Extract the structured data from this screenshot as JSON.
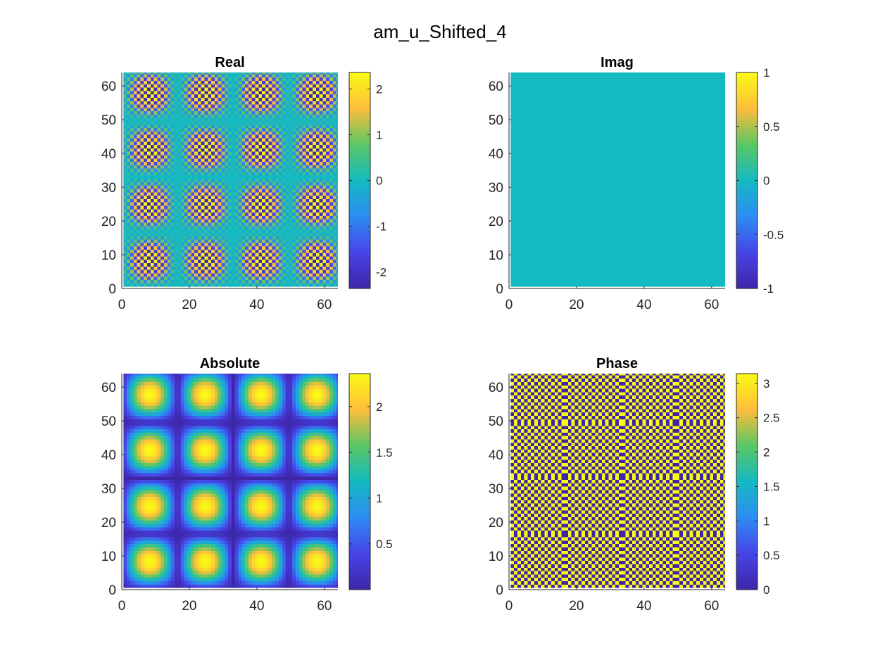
{
  "figure": {
    "title": "am_u_Shifted_4"
  },
  "colormap": [
    "#3e26a8",
    "#4744e8",
    "#2d8cf3",
    "#14bac1",
    "#5ac764",
    "#ffbd3b",
    "#f9fb15"
  ],
  "chart_data": [
    {
      "type": "heatmap",
      "title": "Real",
      "xlim": [
        0,
        64
      ],
      "ylim": [
        0,
        64
      ],
      "xticks": [
        "0",
        "20",
        "40",
        "60"
      ],
      "xtick_values": [
        0,
        20,
        40,
        60
      ],
      "yticks": [
        "0",
        "10",
        "20",
        "30",
        "40",
        "50",
        "60"
      ],
      "ytick_values": [
        0,
        10,
        20,
        30,
        40,
        50,
        60
      ],
      "clim": [
        -2.36,
        2.36
      ],
      "colorbar_ticks": [
        "-2",
        "-1",
        "0",
        "1",
        "2"
      ],
      "colorbar_tick_values": [
        -2,
        -1,
        0,
        1,
        2
      ],
      "grid_size": 64,
      "pattern": "real"
    },
    {
      "type": "heatmap",
      "title": "Imag",
      "xlim": [
        0,
        64
      ],
      "ylim": [
        0,
        64
      ],
      "xticks": [
        "0",
        "20",
        "40",
        "60"
      ],
      "xtick_values": [
        0,
        20,
        40,
        60
      ],
      "yticks": [
        "0",
        "10",
        "20",
        "30",
        "40",
        "50",
        "60"
      ],
      "ytick_values": [
        0,
        10,
        20,
        30,
        40,
        50,
        60
      ],
      "clim": [
        -1,
        1
      ],
      "colorbar_ticks": [
        "-1",
        "-0.5",
        "0",
        "0.5",
        "1"
      ],
      "colorbar_tick_values": [
        -1,
        -0.5,
        0,
        0.5,
        1
      ],
      "grid_size": 64,
      "pattern": "zero"
    },
    {
      "type": "heatmap",
      "title": "Absolute",
      "xlim": [
        0,
        64
      ],
      "ylim": [
        0,
        64
      ],
      "xticks": [
        "0",
        "20",
        "40",
        "60"
      ],
      "xtick_values": [
        0,
        20,
        40,
        60
      ],
      "yticks": [
        "0",
        "10",
        "20",
        "30",
        "40",
        "50",
        "60"
      ],
      "ytick_values": [
        0,
        10,
        20,
        30,
        40,
        50,
        60
      ],
      "clim": [
        0,
        2.36
      ],
      "colorbar_ticks": [
        "0.5",
        "1",
        "1.5",
        "2"
      ],
      "colorbar_tick_values": [
        0.5,
        1,
        1.5,
        2
      ],
      "grid_size": 64,
      "pattern": "abs"
    },
    {
      "type": "heatmap",
      "title": "Phase",
      "xlim": [
        0,
        64
      ],
      "ylim": [
        0,
        64
      ],
      "xticks": [
        "0",
        "20",
        "40",
        "60"
      ],
      "xtick_values": [
        0,
        20,
        40,
        60
      ],
      "yticks": [
        "0",
        "10",
        "20",
        "30",
        "40",
        "50",
        "60"
      ],
      "ytick_values": [
        0,
        10,
        20,
        30,
        40,
        50,
        60
      ],
      "clim": [
        0,
        3.1416
      ],
      "colorbar_ticks": [
        "0",
        "0.5",
        "1",
        "1.5",
        "2",
        "2.5",
        "3"
      ],
      "colorbar_tick_values": [
        0,
        0.5,
        1,
        1.5,
        2,
        2.5,
        3
      ],
      "grid_size": 64,
      "pattern": "phase"
    }
  ]
}
